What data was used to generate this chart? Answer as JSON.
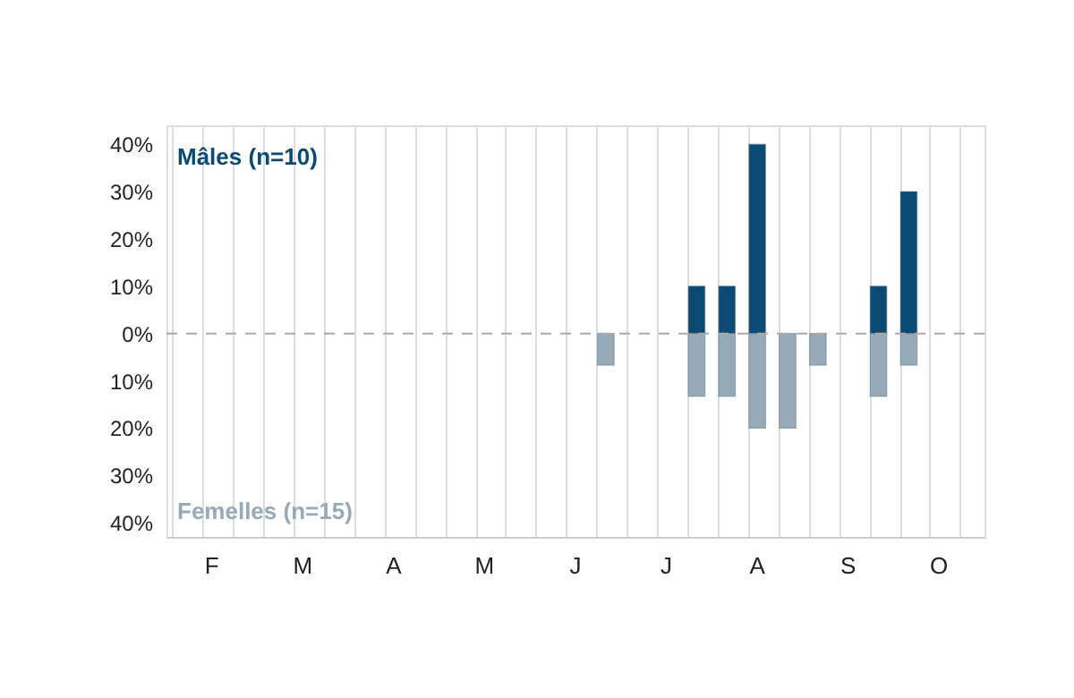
{
  "chart_data": {
    "type": "bar",
    "categories": [
      null,
      "F",
      null,
      null,
      "M",
      null,
      null,
      "A",
      null,
      null,
      "M",
      null,
      null,
      "J",
      null,
      null,
      "J",
      null,
      null,
      "A",
      null,
      null,
      "S",
      null,
      null,
      "O",
      null
    ],
    "series": [
      {
        "name": "Mâles (n=10)",
        "color": "#0b4a72",
        "values": [
          null,
          null,
          null,
          null,
          null,
          null,
          null,
          null,
          null,
          null,
          null,
          null,
          null,
          null,
          null,
          null,
          null,
          10,
          10,
          40,
          null,
          null,
          null,
          10,
          30,
          null,
          null
        ]
      },
      {
        "name": "Femelles (n=15)",
        "color": "#97aab8",
        "values": [
          null,
          null,
          null,
          null,
          null,
          null,
          null,
          null,
          null,
          null,
          null,
          null,
          null,
          null,
          -6.7,
          null,
          null,
          -13.3,
          -13.3,
          -20,
          -20,
          -6.7,
          null,
          -13.3,
          -6.7,
          null,
          null
        ]
      }
    ],
    "ylim": [
      -43,
      44
    ],
    "yticks": [
      {
        "value": 40,
        "label": "40%"
      },
      {
        "value": 30,
        "label": "30%"
      },
      {
        "value": 20,
        "label": "20%"
      },
      {
        "value": 10,
        "label": "10%"
      },
      {
        "value": 0,
        "label": "0%"
      },
      {
        "value": -10,
        "label": "10%"
      },
      {
        "value": -20,
        "label": "20%"
      },
      {
        "value": -30,
        "label": "30%"
      },
      {
        "value": -40,
        "label": "40%"
      }
    ],
    "ref_lines": [
      {
        "axis": "y",
        "value": 0,
        "line_style": "dashed",
        "color": "#aaaaaa"
      }
    ],
    "grid": "x"
  }
}
